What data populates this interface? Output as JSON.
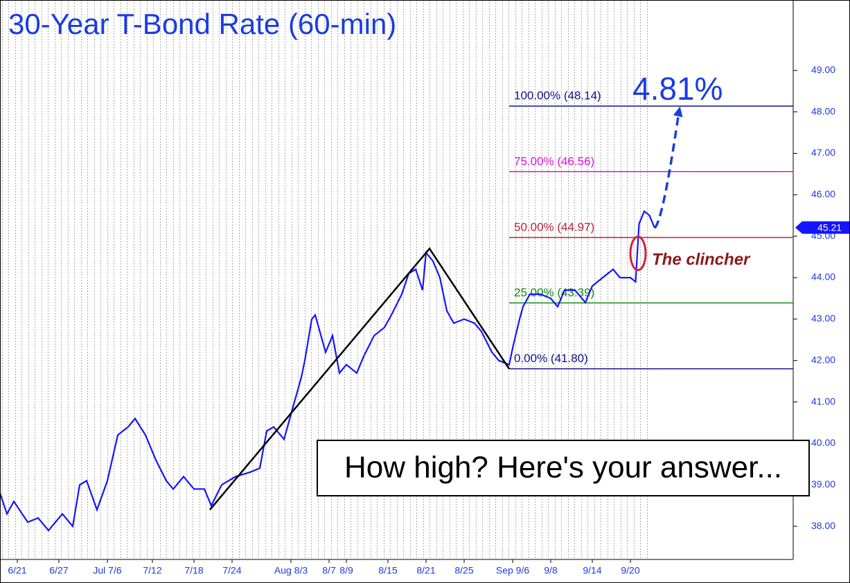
{
  "chart_data": {
    "type": "line",
    "title": "30-Year T-Bond Rate (60-min)",
    "color": "#1414ff",
    "x": [
      0,
      2,
      4,
      8,
      11,
      14,
      18,
      21,
      23,
      25,
      28,
      31,
      34,
      37,
      39,
      42,
      45,
      48,
      50,
      53,
      56,
      59,
      61,
      64,
      68,
      72,
      75,
      77,
      79,
      82,
      85,
      87,
      88,
      90,
      91,
      92,
      94,
      96,
      98,
      100,
      103,
      105,
      108,
      111,
      113,
      116,
      118,
      120,
      122,
      123,
      125,
      127,
      129,
      131,
      134,
      137,
      139,
      142,
      144,
      147,
      148,
      150,
      151,
      153,
      156,
      159,
      161,
      163,
      166,
      169,
      171,
      174,
      177,
      179,
      182,
      183.5,
      184.5,
      186,
      187.5,
      189
    ],
    "values": [
      38.8,
      38.3,
      38.6,
      38.1,
      38.2,
      37.9,
      38.3,
      38.0,
      39.0,
      39.1,
      38.4,
      39.1,
      40.2,
      40.4,
      40.6,
      40.2,
      39.6,
      39.1,
      38.9,
      39.2,
      38.9,
      38.9,
      38.5,
      39.0,
      39.2,
      39.3,
      39.4,
      40.3,
      40.4,
      40.1,
      41.0,
      41.6,
      42.0,
      43.0,
      43.1,
      42.8,
      42.2,
      42.6,
      41.7,
      41.9,
      41.7,
      42.1,
      42.6,
      42.8,
      43.1,
      43.6,
      44.1,
      44.2,
      43.7,
      44.6,
      44.4,
      44.0,
      43.2,
      42.9,
      43.0,
      42.9,
      42.7,
      42.2,
      42.0,
      41.9,
      42.3,
      43.0,
      43.3,
      43.6,
      43.6,
      43.5,
      43.3,
      43.7,
      43.7,
      43.4,
      43.8,
      44.0,
      44.2,
      44.0,
      44.0,
      43.9,
      45.3,
      45.6,
      45.5,
      45.2
    ],
    "xlim": [
      0,
      229
    ],
    "xticks": [
      {
        "value": 5,
        "label": "6/21"
      },
      {
        "value": 17,
        "label": "6/27"
      },
      {
        "value": 31,
        "label": "Jul 7/6"
      },
      {
        "value": 44,
        "label": "7/12"
      },
      {
        "value": 56,
        "label": "7/18"
      },
      {
        "value": 67,
        "label": "7/24"
      },
      {
        "value": 84,
        "label": "Aug 8/3"
      },
      {
        "value": 95,
        "label": "8/7"
      },
      {
        "value": 100,
        "label": "8/9"
      },
      {
        "value": 112,
        "label": "8/15"
      },
      {
        "value": 123,
        "label": "8/21"
      },
      {
        "value": 134,
        "label": "8/25"
      },
      {
        "value": 148,
        "label": "Sep 9/6"
      },
      {
        "value": 159,
        "label": "9/8"
      },
      {
        "value": 171,
        "label": "9/14"
      },
      {
        "value": 182,
        "label": "9/20"
      }
    ],
    "ylim": [
      37.2,
      50.7
    ],
    "yticks": [
      {
        "value": 38,
        "label": "38.00"
      },
      {
        "value": 39,
        "label": "39.00"
      },
      {
        "value": 40,
        "label": "40.00"
      },
      {
        "value": 41,
        "label": "41.00"
      },
      {
        "value": 42,
        "label": "42.00"
      },
      {
        "value": 43,
        "label": "43.00"
      },
      {
        "value": 44,
        "label": "44.00"
      },
      {
        "value": 45,
        "label": "45.00"
      },
      {
        "value": 46,
        "label": "46.00"
      },
      {
        "value": 47,
        "label": "47.00"
      },
      {
        "value": 48,
        "label": "48.00"
      },
      {
        "value": 49,
        "label": "49.00"
      }
    ],
    "last_value": 45.21,
    "zigzag": {
      "x": [
        60.6,
        124,
        147
      ],
      "values": [
        38.4,
        44.7,
        41.8
      ]
    },
    "projection": {
      "x": [
        189,
        196
      ],
      "values": [
        45.2,
        48.0
      ]
    },
    "levels": [
      {
        "label": "100.00% (48.14)",
        "value": 48.14,
        "color": "#10108a"
      },
      {
        "label": "75.00% (46.56)",
        "value": 46.56,
        "color": "#e010e0"
      },
      {
        "label": "50.00% (44.97)",
        "value": 44.97,
        "color": "#c0203a"
      },
      {
        "label": "25.00% (43.39)",
        "value": 43.39,
        "color": "#108a10"
      },
      {
        "label": "0.00% (41.80)",
        "value": 41.8,
        "color": "#10108a"
      }
    ],
    "annotations": {
      "target": "4.81%",
      "clincher": "The clincher",
      "box": "How high? Here's your answer..."
    }
  }
}
